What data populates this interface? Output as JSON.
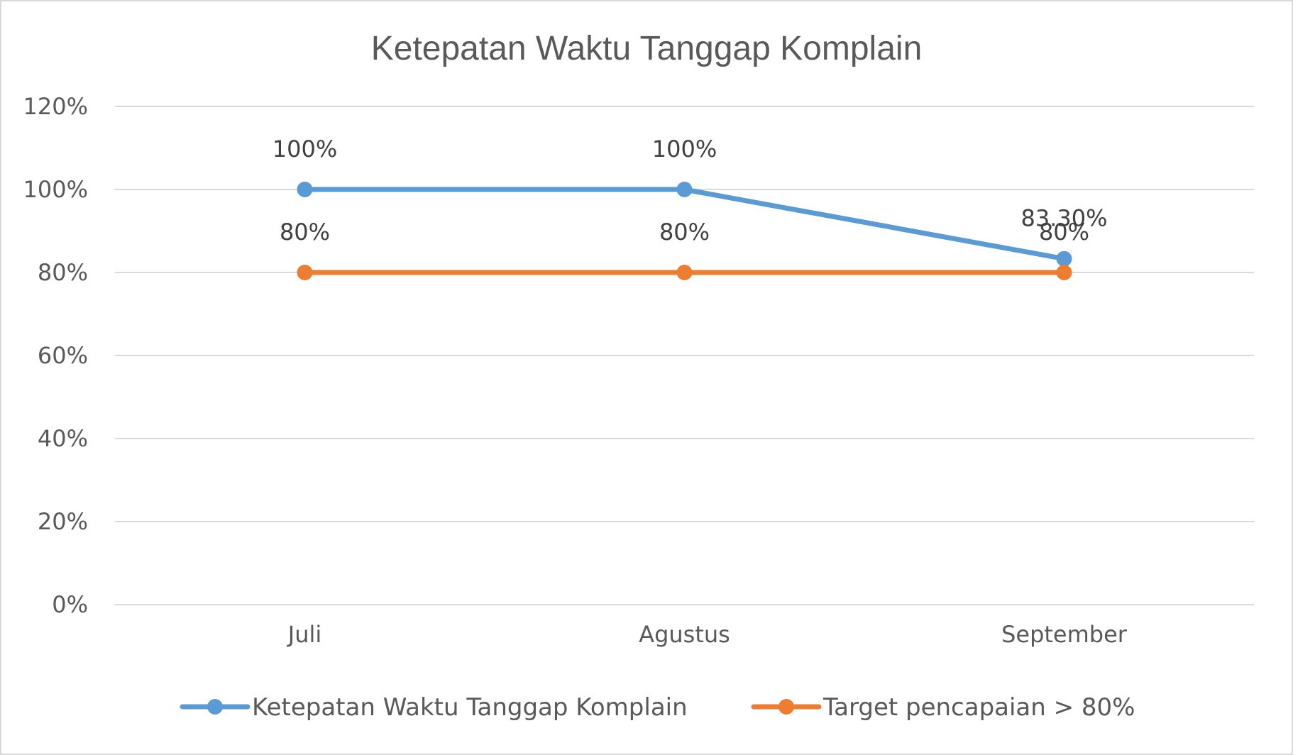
{
  "chart_data": {
    "type": "line",
    "title": "Ketepatan Waktu Tanggap Komplain",
    "categories": [
      "Juli",
      "Agustus",
      "September"
    ],
    "ylim": [
      0,
      1.2
    ],
    "yticks": [
      "0%",
      "20%",
      "40%",
      "60%",
      "80%",
      "100%",
      "120%"
    ],
    "grid": true,
    "legend_position": "bottom",
    "series": [
      {
        "name": "Ketepatan Waktu Tanggap Komplain",
        "values": [
          1.0,
          1.0,
          0.833
        ],
        "labels": [
          "100%",
          "100%",
          "83.30%"
        ],
        "color": "#5b9bd5"
      },
      {
        "name": "Target pencapaian > 80%",
        "values": [
          0.8,
          0.8,
          0.8
        ],
        "labels": [
          "80%",
          "80%",
          "80%"
        ],
        "color": "#ed7d31"
      }
    ]
  }
}
